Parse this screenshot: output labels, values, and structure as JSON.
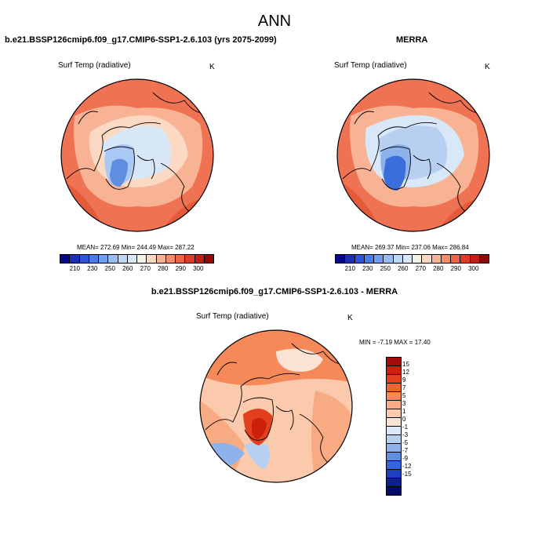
{
  "figure": {
    "title": "ANN",
    "panels": [
      {
        "title": "b.e21.BSSP126cmip6.f09_g17.CMIP6-SSP1-2.6.103 (yrs 2075-2099)",
        "variable": "Surf Temp (radiative)",
        "units": "K",
        "stats": "MEAN= 272.69  Min= 244.49  Max= 287.22"
      },
      {
        "title": "MERRA",
        "variable": "Surf Temp (radiative)",
        "units": "K",
        "stats": "MEAN= 269.37  Min= 237.06  Max= 286.84"
      },
      {
        "title": "b.e21.BSSP126cmip6.f09_g17.CMIP6-SSP1-2.6.103 - MERRA",
        "variable": "Surf Temp (radiative)",
        "units": "K",
        "stats": "MIN =  -7.19 MAX =  17.40"
      }
    ]
  },
  "abs_colorbar": {
    "ticks": [
      "210",
      "230",
      "250",
      "260",
      "270",
      "280",
      "290",
      "300"
    ],
    "colors": [
      "#08088a",
      "#1c2fb3",
      "#2e55d6",
      "#4b7ce8",
      "#6f9df0",
      "#98bdf5",
      "#bcd6f8",
      "#d9e8f8",
      "#f3f1e6",
      "#fbd7bf",
      "#f8b394",
      "#f48c6c",
      "#ee6446",
      "#dd3d27",
      "#c01f14",
      "#8e0a0a"
    ]
  },
  "diff_colorbar": {
    "ticks": [
      "15",
      "12",
      "9",
      "7",
      "5",
      "3",
      "1",
      "0",
      "-1",
      "-3",
      "-5",
      "-7",
      "-9",
      "-12",
      "-15"
    ],
    "colors": [
      "#a30d0d",
      "#cc200f",
      "#e2401c",
      "#f06433",
      "#f5895a",
      "#f8aa82",
      "#fbc9ab",
      "#fbe3d3",
      "#dbe8f7",
      "#b7d0f2",
      "#8db3ea",
      "#5f8ee0",
      "#3366d6",
      "#1c40be",
      "#0c1e9a",
      "#050a6b"
    ]
  }
}
